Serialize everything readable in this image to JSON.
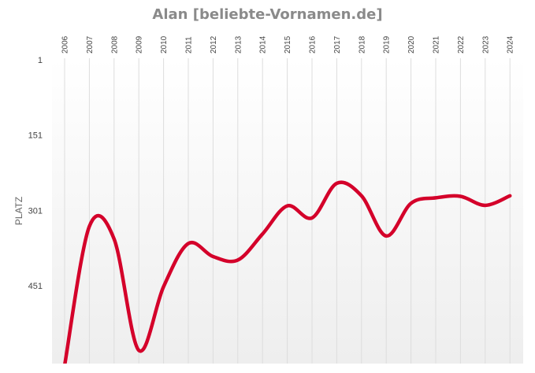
{
  "chart_data": {
    "type": "line",
    "title": "Alan [beliebte-Vornamen.de]",
    "xlabel": "",
    "ylabel": "PLATZ",
    "y_inverted": true,
    "ylim": [
      1,
      601
    ],
    "y_ticks": [
      1,
      151,
      301,
      451
    ],
    "x": [
      "2006",
      "2007",
      "2008",
      "2009",
      "2010",
      "2011",
      "2012",
      "2013",
      "2014",
      "2015",
      "2016",
      "2017",
      "2018",
      "2019",
      "2020",
      "2021",
      "2022",
      "2023",
      "2024"
    ],
    "series": [
      {
        "name": "",
        "color": "#d4002a",
        "values": [
          610,
          333,
          358,
          580,
          453,
          367,
          393,
          400,
          348,
          292,
          316,
          247,
          272,
          352,
          287,
          276,
          273,
          291,
          272
        ]
      }
    ],
    "grid": {
      "vertical": true,
      "horizontal": false
    },
    "background_gradient": [
      "#ffffff",
      "#eeeeee"
    ]
  }
}
